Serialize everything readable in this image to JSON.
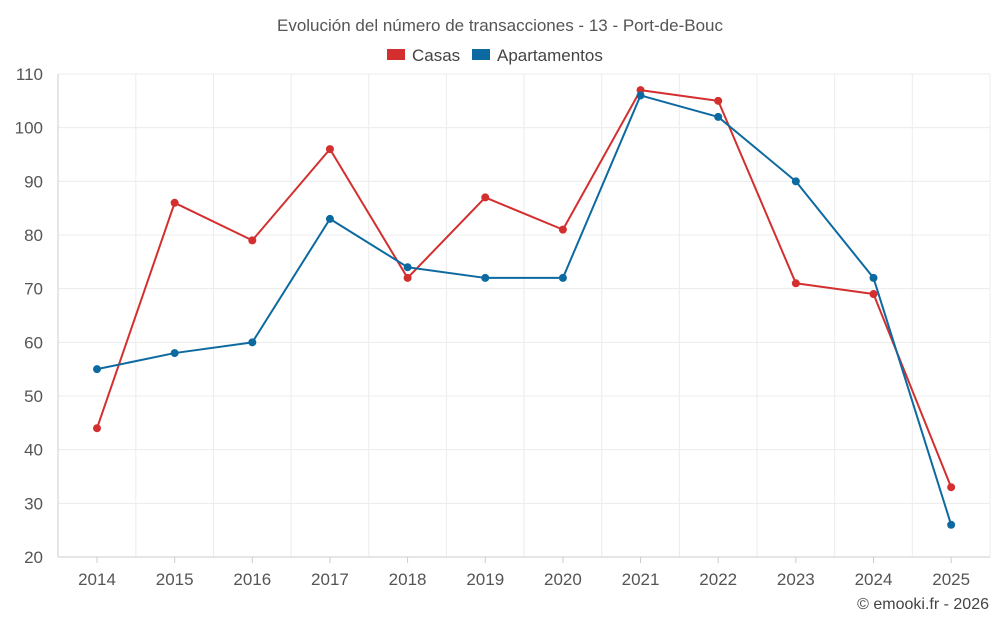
{
  "chart_data": {
    "type": "line",
    "title": "Evolución del número de transacciones - 13 - Port-de-Bouc",
    "categories": [
      "2014",
      "2015",
      "2016",
      "2017",
      "2018",
      "2019",
      "2020",
      "2021",
      "2022",
      "2023",
      "2024",
      "2025"
    ],
    "series": [
      {
        "name": "Casas",
        "color": "#d32f2f",
        "values": [
          44,
          86,
          79,
          96,
          72,
          87,
          81,
          107,
          105,
          71,
          69,
          33
        ]
      },
      {
        "name": "Apartamentos",
        "color": "#0d6aa0",
        "values": [
          55,
          58,
          60,
          83,
          74,
          72,
          72,
          106,
          102,
          90,
          72,
          26
        ]
      }
    ],
    "ylim": [
      20,
      110
    ],
    "yticks": [
      20,
      30,
      40,
      50,
      60,
      70,
      80,
      90,
      100,
      110
    ],
    "grid": true,
    "legend": "top-center",
    "xlabel": "",
    "ylabel": ""
  },
  "credit": "© emooki.fr - 2026"
}
